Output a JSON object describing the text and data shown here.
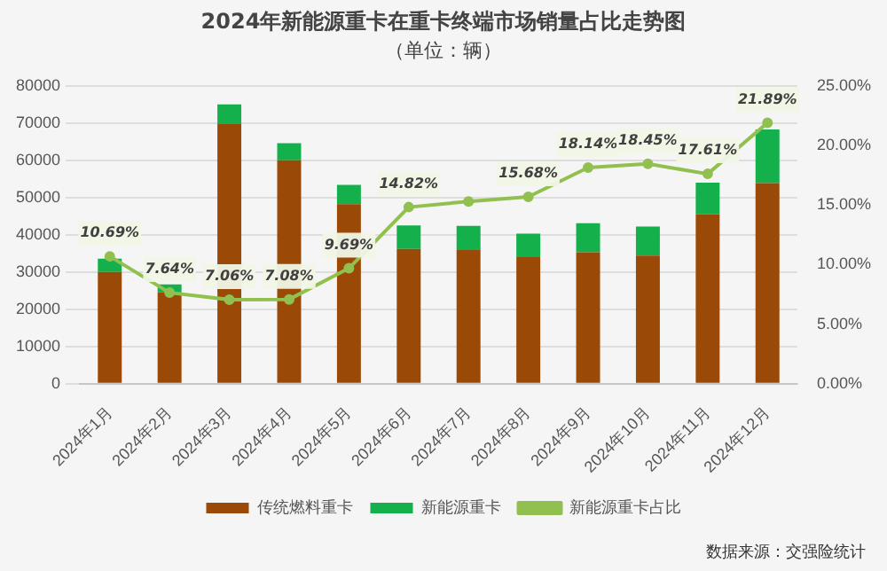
{
  "chart_data": {
    "type": "bar",
    "title": "2024年新能源重卡在重卡终端市场销量占比走势图",
    "subtitle": "（单位：辆）",
    "categories": [
      "2024年1月",
      "2024年2月",
      "2024年3月",
      "2024年4月",
      "2024年5月",
      "2024年6月",
      "2024年7月",
      "2024年8月",
      "2024年9月",
      "2024年10月",
      "2024年11月",
      "2024年12月"
    ],
    "series": [
      {
        "name": "传统燃料重卡",
        "color": "#9a4a06",
        "values": [
          30000,
          24600,
          69700,
          60000,
          48200,
          36200,
          35900,
          34000,
          35300,
          34400,
          45500,
          53900
        ]
      },
      {
        "name": "新能源重卡",
        "color": "#14b04c",
        "values": [
          3600,
          2100,
          5300,
          4600,
          5200,
          6300,
          6500,
          6300,
          7800,
          7800,
          8500,
          14400
        ]
      },
      {
        "name": "新能源重卡占比",
        "type": "line",
        "axis": "y2",
        "color": "#92c050",
        "marker": "circle",
        "values": [
          10.69,
          7.64,
          7.06,
          7.08,
          9.69,
          14.82,
          15.3,
          15.68,
          18.14,
          18.45,
          17.61,
          21.89
        ],
        "value_labels": [
          "10.69%",
          "7.64%",
          "7.06%",
          "7.08%",
          "9.69%",
          "14.82%",
          null,
          "15.68%",
          "18.14%",
          "18.45%",
          "17.61%",
          "21.89%"
        ]
      }
    ],
    "stacked": true,
    "ylim": [
      0,
      80000
    ],
    "yticks": [
      0,
      10000,
      20000,
      30000,
      40000,
      50000,
      60000,
      70000,
      80000
    ],
    "y2lim": [
      0,
      25
    ],
    "y2ticks": [
      {
        "value": 0,
        "label": "0.00%"
      },
      {
        "value": 5,
        "label": "5.00%"
      },
      {
        "value": 10,
        "label": "10.00%"
      },
      {
        "value": 15,
        "label": "15.00%"
      },
      {
        "value": 20,
        "label": "20.00%"
      },
      {
        "value": 25,
        "label": "25.00%"
      }
    ],
    "grid": "y",
    "legend": "bottom",
    "annotations": [
      "数据来源：交强险统计"
    ]
  }
}
